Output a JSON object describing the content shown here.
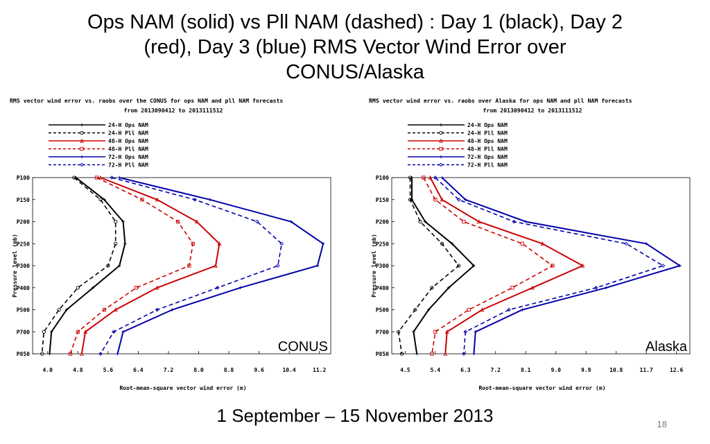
{
  "slide": {
    "title_lines": [
      "Ops NAM (solid) vs Pll NAM (dashed) : Day 1 (black), Day 2",
      "(red), Day 3 (blue) RMS Vector Wind Error over",
      "CONUS/Alaska"
    ],
    "footer": "1 September – 15 November 2013",
    "page_number": "18"
  },
  "chart_data": [
    {
      "type": "line",
      "title": "RMS vector wind error vs. raobs over the CONUS for ops NAM and pll NAM forecasts",
      "subtitle": "from 2013090412 to 2013111512",
      "panel_label": "CONUS",
      "xlabel": "Root-mean-square vector wind error (m)",
      "ylabel": "Pressure level (mb)",
      "xlim": [
        3.6,
        11.5
      ],
      "xticks": [
        4.0,
        4.8,
        5.6,
        6.4,
        7.2,
        8.0,
        8.8,
        9.6,
        10.4,
        11.2
      ],
      "xtick_labels": [
        "4.0",
        "4.8",
        "5.6",
        "6.4",
        "7.2",
        "8.0",
        "8.8",
        "9.6",
        "10.4",
        "11.2"
      ],
      "levels": [
        "P100",
        "P150",
        "P200",
        "P250",
        "P300",
        "P400",
        "P500",
        "P700",
        "P850"
      ],
      "series": [
        {
          "name": "24-H Ops NAM",
          "color": "#000000",
          "dashed": false,
          "values": [
            4.75,
            5.5,
            6.0,
            6.05,
            5.9,
            5.2,
            4.5,
            4.1,
            4.05
          ]
        },
        {
          "name": "24-H Pll NAM",
          "color": "#000000",
          "dashed": true,
          "values": [
            4.7,
            5.4,
            5.8,
            5.8,
            5.6,
            4.8,
            4.3,
            3.9,
            3.85
          ]
        },
        {
          "name": "48-H Ops NAM",
          "color": "#cc0000",
          "dashed": false,
          "values": [
            5.4,
            6.9,
            7.95,
            8.55,
            8.45,
            6.9,
            5.8,
            5.0,
            4.9
          ]
        },
        {
          "name": "48-H Pll NAM",
          "color": "#cc0000",
          "dashed": true,
          "values": [
            5.3,
            6.5,
            7.45,
            7.85,
            7.75,
            6.35,
            5.5,
            4.8,
            4.6
          ]
        },
        {
          "name": "72-H Ops NAM",
          "color": "#0000aa",
          "dashed": false,
          "values": [
            5.9,
            8.3,
            10.45,
            11.3,
            11.15,
            9.1,
            7.3,
            6.0,
            5.85
          ]
        },
        {
          "name": "72-H Pll NAM",
          "color": "#0000aa",
          "dashed": true,
          "values": [
            5.7,
            7.9,
            9.55,
            10.2,
            10.1,
            8.5,
            6.9,
            5.75,
            5.4
          ]
        }
      ]
    },
    {
      "type": "line",
      "title": "RMS vector wind error vs. raobs over Alaska for ops NAM and pll NAM forecasts",
      "subtitle": "from 2013090412 to 2013111512",
      "panel_label": "Alaska",
      "xlabel": "Root-mean-square vector wind error (m)",
      "ylabel": "Pressure level (mb)",
      "xlim": [
        4.1,
        13.0
      ],
      "xticks": [
        4.5,
        5.4,
        6.3,
        7.2,
        8.1,
        9.0,
        9.9,
        10.8,
        11.7,
        12.6
      ],
      "xtick_labels": [
        "4.5",
        "5.4",
        "6.3",
        "7.2",
        "8.1",
        "9.0",
        "9.9",
        "10.8",
        "11.7",
        "12.6"
      ],
      "levels": [
        "P100",
        "P150",
        "P200",
        "P250",
        "P300",
        "P400",
        "P500",
        "P700",
        "P850"
      ],
      "series": [
        {
          "name": "24-H Ops NAM",
          "color": "#000000",
          "dashed": false,
          "values": [
            4.7,
            4.7,
            5.1,
            5.9,
            6.55,
            5.8,
            5.2,
            4.75,
            4.85
          ]
        },
        {
          "name": "24-H Pll NAM",
          "color": "#000000",
          "dashed": true,
          "values": [
            4.65,
            4.65,
            4.95,
            5.6,
            6.1,
            5.3,
            4.8,
            4.3,
            4.4
          ]
        },
        {
          "name": "48-H Ops NAM",
          "color": "#cc0000",
          "dashed": false,
          "values": [
            5.25,
            5.6,
            6.7,
            8.6,
            9.8,
            8.3,
            6.8,
            5.75,
            5.7
          ]
        },
        {
          "name": "48-H Pll NAM",
          "color": "#cc0000",
          "dashed": true,
          "values": [
            5.05,
            5.4,
            6.25,
            8.0,
            8.9,
            7.7,
            6.4,
            5.4,
            5.3
          ]
        },
        {
          "name": "72-H Ops NAM",
          "color": "#0000aa",
          "dashed": false,
          "values": [
            5.6,
            6.3,
            8.1,
            11.7,
            12.7,
            10.5,
            8.0,
            6.6,
            6.55
          ]
        },
        {
          "name": "72-H Pll NAM",
          "color": "#0000aa",
          "dashed": true,
          "values": [
            5.4,
            6.1,
            7.75,
            11.1,
            12.2,
            10.2,
            7.6,
            6.3,
            6.25
          ]
        }
      ]
    }
  ]
}
